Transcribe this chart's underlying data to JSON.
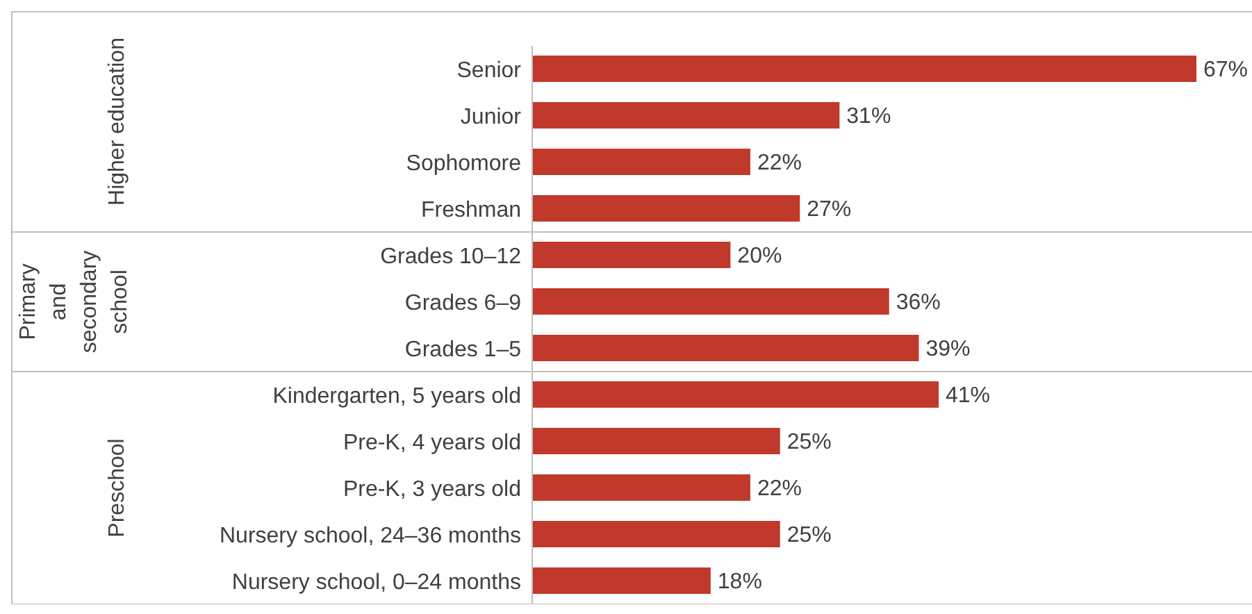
{
  "chart_data": {
    "type": "bar",
    "orientation": "horizontal",
    "color": "#c0392b",
    "categories": [
      "Senior",
      "Junior",
      "Sophomore",
      "Freshman",
      "Grades 10–12",
      "Grades 6–9",
      "Grades 1–5",
      "Kindergarten, 5 years old",
      "Pre-K, 4 years old",
      "Pre-K, 3 years old",
      "Nursery school, 24–36 months",
      "Nursery school, 0–24 months"
    ],
    "values": [
      67,
      31,
      22,
      27,
      20,
      36,
      39,
      41,
      25,
      22,
      25,
      18
    ],
    "value_labels": [
      "67%",
      "31%",
      "22%",
      "27%",
      "20%",
      "36%",
      "39%",
      "41%",
      "25%",
      "22%",
      "25%",
      "18%"
    ],
    "annotations": [
      "Higher education",
      "Primary and secondary school",
      "Preschool"
    ]
  }
}
